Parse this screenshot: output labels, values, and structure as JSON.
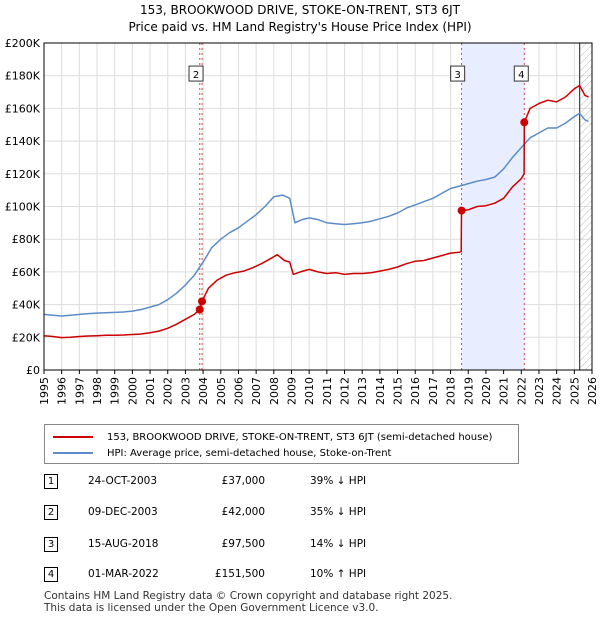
{
  "title": "153, BROOKWOOD DRIVE, STOKE-ON-TRENT, ST3 6JT",
  "subtitle": "Price paid vs. HM Land Registry's House Price Index (HPI)",
  "colors": {
    "property": "#cc0000",
    "hpi": "#5b8cc8",
    "shade": "#e8eeff",
    "grid": "#dddddd"
  },
  "chart_data": {
    "type": "line",
    "ylim": [
      0,
      200000
    ],
    "xlim": [
      1995,
      2026
    ],
    "yticks": [
      {
        "value": 0,
        "label": "£0"
      },
      {
        "value": 20000,
        "label": "£20K"
      },
      {
        "value": 40000,
        "label": "£40K"
      },
      {
        "value": 60000,
        "label": "£60K"
      },
      {
        "value": 80000,
        "label": "£80K"
      },
      {
        "value": 100000,
        "label": "£100K"
      },
      {
        "value": 120000,
        "label": "£120K"
      },
      {
        "value": 140000,
        "label": "£140K"
      },
      {
        "value": 160000,
        "label": "£160K"
      },
      {
        "value": 180000,
        "label": "£180K"
      },
      {
        "value": 200000,
        "label": "£200K"
      }
    ],
    "xticks": [
      "1995",
      "1996",
      "1997",
      "1998",
      "1999",
      "2000",
      "2001",
      "2002",
      "2003",
      "2004",
      "2005",
      "2006",
      "2007",
      "2008",
      "2009",
      "2010",
      "2011",
      "2012",
      "2013",
      "2014",
      "2015",
      "2016",
      "2017",
      "2018",
      "2019",
      "2020",
      "2021",
      "2022",
      "2023",
      "2024",
      "2025",
      "2026"
    ],
    "shaded_regions": [
      [
        2018.62,
        2022.17
      ]
    ],
    "future_hatch_from": 2025.3,
    "series": [
      {
        "name": "153, BROOKWOOD DRIVE, STOKE-ON-TRENT, ST3 6JT (semi-detached house)",
        "color": "#cc0000",
        "points": [
          [
            1995.0,
            21000
          ],
          [
            1995.5,
            20500
          ],
          [
            1996.0,
            19800
          ],
          [
            1996.5,
            20000
          ],
          [
            1997.0,
            20500
          ],
          [
            1997.5,
            20800
          ],
          [
            1998.0,
            21000
          ],
          [
            1998.5,
            21200
          ],
          [
            1999.0,
            21300
          ],
          [
            1999.5,
            21400
          ],
          [
            2000.0,
            21700
          ],
          [
            2000.5,
            22000
          ],
          [
            2001.0,
            22800
          ],
          [
            2001.5,
            23800
          ],
          [
            2002.0,
            25500
          ],
          [
            2002.5,
            28000
          ],
          [
            2003.0,
            31000
          ],
          [
            2003.5,
            34000
          ],
          [
            2003.81,
            37000
          ],
          [
            2003.94,
            42000
          ],
          [
            2004.3,
            50000
          ],
          [
            2004.8,
            55000
          ],
          [
            2005.3,
            58000
          ],
          [
            2005.8,
            59500
          ],
          [
            2006.3,
            60500
          ],
          [
            2006.8,
            62500
          ],
          [
            2007.3,
            65000
          ],
          [
            2007.8,
            68000
          ],
          [
            2008.2,
            70500
          ],
          [
            2008.6,
            67000
          ],
          [
            2008.9,
            66000
          ],
          [
            2009.1,
            58500
          ],
          [
            2009.5,
            60000
          ],
          [
            2010.0,
            61500
          ],
          [
            2010.5,
            60000
          ],
          [
            2011.0,
            59000
          ],
          [
            2011.5,
            59500
          ],
          [
            2012.0,
            58500
          ],
          [
            2012.5,
            59000
          ],
          [
            2013.0,
            59000
          ],
          [
            2013.5,
            59500
          ],
          [
            2014.0,
            60500
          ],
          [
            2014.5,
            61500
          ],
          [
            2015.0,
            63000
          ],
          [
            2015.5,
            65000
          ],
          [
            2016.0,
            66500
          ],
          [
            2016.5,
            67000
          ],
          [
            2017.0,
            68500
          ],
          [
            2017.5,
            70000
          ],
          [
            2018.0,
            71500
          ],
          [
            2018.5,
            72000
          ],
          [
            2018.6,
            72500
          ],
          [
            2018.62,
            97500
          ],
          [
            2019.0,
            98000
          ],
          [
            2019.5,
            100000
          ],
          [
            2020.0,
            100500
          ],
          [
            2020.5,
            102000
          ],
          [
            2021.0,
            105000
          ],
          [
            2021.5,
            112000
          ],
          [
            2022.0,
            117000
          ],
          [
            2022.16,
            120000
          ],
          [
            2022.17,
            151500
          ],
          [
            2022.5,
            160000
          ],
          [
            2023.0,
            163000
          ],
          [
            2023.5,
            165000
          ],
          [
            2024.0,
            164000
          ],
          [
            2024.5,
            167000
          ],
          [
            2025.0,
            172000
          ],
          [
            2025.3,
            174000
          ],
          [
            2025.6,
            168000
          ],
          [
            2025.8,
            167000
          ]
        ]
      },
      {
        "name": "HPI: Average price, semi-detached house, Stoke-on-Trent",
        "color": "#5b8cc8",
        "points": [
          [
            1995.0,
            34000
          ],
          [
            1995.5,
            33500
          ],
          [
            1996.0,
            33000
          ],
          [
            1996.5,
            33500
          ],
          [
            1997.0,
            34000
          ],
          [
            1997.5,
            34500
          ],
          [
            1998.0,
            34800
          ],
          [
            1998.5,
            35000
          ],
          [
            1999.0,
            35200
          ],
          [
            1999.5,
            35500
          ],
          [
            2000.0,
            36000
          ],
          [
            2000.5,
            37000
          ],
          [
            2001.0,
            38500
          ],
          [
            2001.5,
            40000
          ],
          [
            2002.0,
            43000
          ],
          [
            2002.5,
            47000
          ],
          [
            2003.0,
            52000
          ],
          [
            2003.5,
            58000
          ],
          [
            2004.0,
            66000
          ],
          [
            2004.5,
            75000
          ],
          [
            2005.0,
            80000
          ],
          [
            2005.5,
            84000
          ],
          [
            2006.0,
            87000
          ],
          [
            2006.5,
            91000
          ],
          [
            2007.0,
            95000
          ],
          [
            2007.5,
            100000
          ],
          [
            2008.0,
            106000
          ],
          [
            2008.5,
            107000
          ],
          [
            2008.9,
            105000
          ],
          [
            2009.2,
            90000
          ],
          [
            2009.6,
            92000
          ],
          [
            2010.0,
            93000
          ],
          [
            2010.5,
            92000
          ],
          [
            2011.0,
            90000
          ],
          [
            2011.5,
            89500
          ],
          [
            2012.0,
            89000
          ],
          [
            2012.5,
            89500
          ],
          [
            2013.0,
            90000
          ],
          [
            2013.5,
            91000
          ],
          [
            2014.0,
            92500
          ],
          [
            2014.5,
            94000
          ],
          [
            2015.0,
            96000
          ],
          [
            2015.5,
            99000
          ],
          [
            2016.0,
            101000
          ],
          [
            2016.5,
            103000
          ],
          [
            2017.0,
            105000
          ],
          [
            2017.5,
            108000
          ],
          [
            2018.0,
            111000
          ],
          [
            2018.5,
            112500
          ],
          [
            2019.0,
            114000
          ],
          [
            2019.5,
            115500
          ],
          [
            2020.0,
            116500
          ],
          [
            2020.5,
            118000
          ],
          [
            2021.0,
            123000
          ],
          [
            2021.5,
            130000
          ],
          [
            2022.0,
            136000
          ],
          [
            2022.5,
            142000
          ],
          [
            2023.0,
            145000
          ],
          [
            2023.5,
            148000
          ],
          [
            2024.0,
            148000
          ],
          [
            2024.5,
            151000
          ],
          [
            2025.0,
            155000
          ],
          [
            2025.3,
            157000
          ],
          [
            2025.6,
            153000
          ],
          [
            2025.8,
            152000
          ]
        ]
      }
    ],
    "markers": [
      {
        "label": "1",
        "x": 2003.81,
        "y": 37000
      },
      {
        "label": "2",
        "x": 2003.94,
        "y": 42000
      },
      {
        "label": "3",
        "x": 2018.62,
        "y": 97500
      },
      {
        "label": "4",
        "x": 2022.17,
        "y": 151500
      }
    ],
    "chart_labels": [
      {
        "label": "2",
        "x": 2003.6,
        "y": 181000
      },
      {
        "label": "3",
        "x": 2018.4,
        "y": 181000
      },
      {
        "label": "4",
        "x": 2022.0,
        "y": 181000
      }
    ]
  },
  "legend": {
    "property_label": "153, BROOKWOOD DRIVE, STOKE-ON-TRENT, ST3 6JT (semi-detached house)",
    "hpi_label": "HPI: Average price, semi-detached house, Stoke-on-Trent"
  },
  "transactions": [
    {
      "num": "1",
      "date": "24-OCT-2003",
      "price": "£37,000",
      "hpi": "39% ↓ HPI"
    },
    {
      "num": "2",
      "date": "09-DEC-2003",
      "price": "£42,000",
      "hpi": "35% ↓ HPI"
    },
    {
      "num": "3",
      "date": "15-AUG-2018",
      "price": "£97,500",
      "hpi": "14% ↓ HPI"
    },
    {
      "num": "4",
      "date": "01-MAR-2022",
      "price": "£151,500",
      "hpi": "10% ↑ HPI"
    }
  ],
  "footer": {
    "line1": "Contains HM Land Registry data © Crown copyright and database right 2025.",
    "line2": "This data is licensed under the Open Government Licence v3.0."
  }
}
